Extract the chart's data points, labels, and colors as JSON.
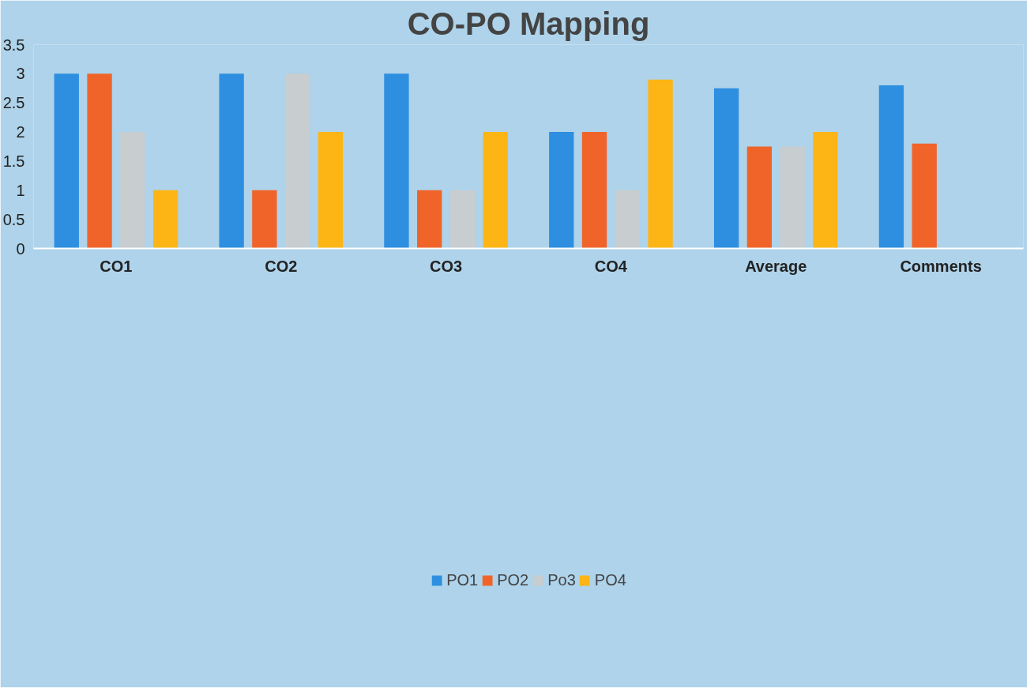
{
  "chart_data": {
    "type": "bar",
    "title": "CO-PO Mapping",
    "categories": [
      "CO1",
      "CO2",
      "CO3",
      "CO4",
      "Average",
      "Comments"
    ],
    "series": [
      {
        "name": "PO1",
        "color": "#2e8fe0",
        "values": [
          3,
          3,
          3,
          2,
          2.75,
          2.8
        ]
      },
      {
        "name": "PO2",
        "color": "#f0642a",
        "values": [
          3,
          1,
          1,
          2,
          1.75,
          1.8
        ]
      },
      {
        "name": "Po3",
        "color": "#c8cdd0",
        "values": [
          2,
          3,
          1,
          1,
          1.75,
          null
        ]
      },
      {
        "name": "PO4",
        "color": "#fdb515",
        "values": [
          1,
          2,
          2,
          2.9,
          2,
          null
        ]
      }
    ],
    "ylim": [
      0,
      3.5
    ],
    "yticks": [
      0,
      0.5,
      1,
      1.5,
      2,
      2.5,
      3,
      3.5
    ],
    "grid": false,
    "legend": "bottom"
  }
}
